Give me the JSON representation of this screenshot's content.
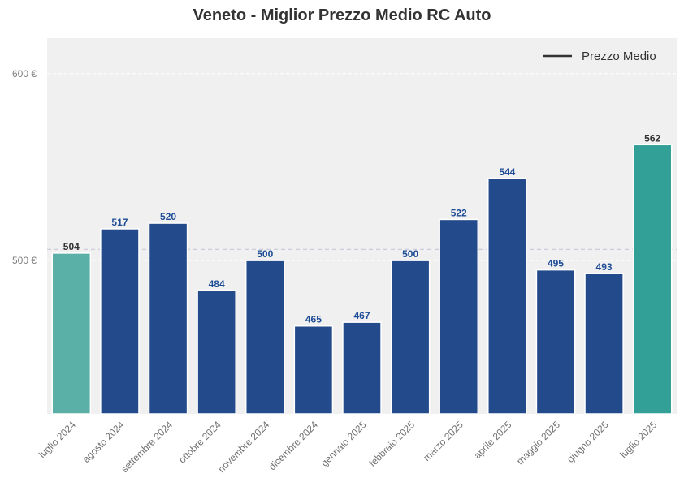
{
  "chart_data": {
    "type": "bar",
    "title": "Veneto - Miglior Prezzo Medio RC Auto",
    "categories": [
      "luglio 2024",
      "agosto 2024",
      "settembre 2024",
      "ottobre 2024",
      "novembre 2024",
      "dicembre 2024",
      "gennaio 2025",
      "febbraio 2025",
      "marzo 2025",
      "aprile 2025",
      "maggio 2025",
      "giugno 2025",
      "luglio 2025"
    ],
    "values": [
      504,
      517,
      520,
      484,
      500,
      465,
      467,
      500,
      522,
      544,
      495,
      493,
      562
    ],
    "value_labels": [
      "504",
      "517",
      "520",
      "484",
      "500",
      "465",
      "467",
      "500",
      "522",
      "544",
      "495",
      "493",
      "562"
    ],
    "highlighted": [
      0,
      12
    ],
    "ylim": [
      418,
      619
    ],
    "yticks": [
      500,
      600
    ],
    "ytick_labels": [
      "500 €",
      "600 €"
    ],
    "average": 506,
    "grid": true,
    "legend": {
      "position": "top-right",
      "entries": [
        "Prezzo Medio"
      ]
    },
    "colors": {
      "bar": "#234b8b",
      "bar_first": "#5ab0a6",
      "bar_last": "#33a098",
      "label_default": "#1e4c96",
      "label_highlight": "#333333",
      "plot_background": "#f0f0f0",
      "average_line": "#c9c9d8",
      "legend_line": "#333333"
    }
  }
}
